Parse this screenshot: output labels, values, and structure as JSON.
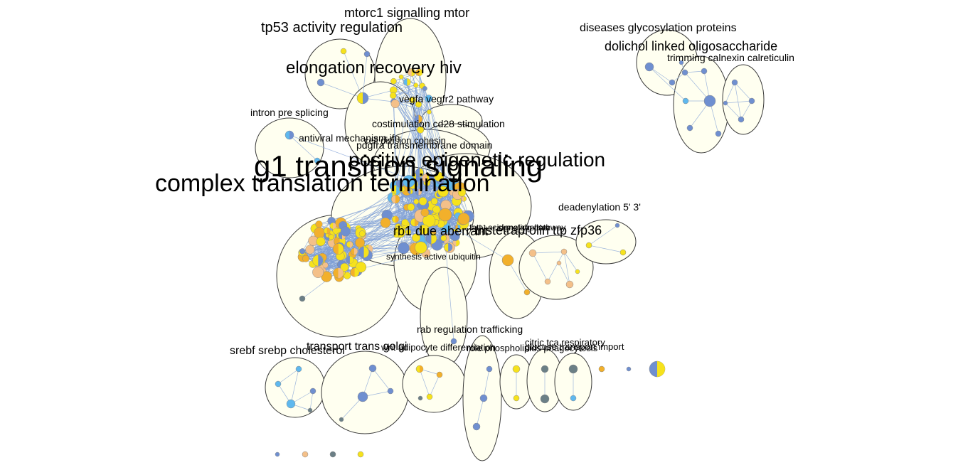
{
  "labels": {
    "g1_transition": "g1 transition signaling",
    "complex_translation": "complex translation termination",
    "positive_epigenetic": "positive epigenetic regulation",
    "elongation_recovery": "elongation recovery hiv",
    "tp53_activity": "tp53 activity regulation",
    "mtorc1": "mtorc1 signalling mtor",
    "rb1_due": "rb1 due aberrant",
    "tristetraprolin": "tristetraprolin ttp zfp36",
    "dolichol": "dolichol linked oligosaccharide",
    "diseases_glycosylation": "diseases glycosylation proteins",
    "trimming_calnexin": "trimming calnexin calreticulin",
    "vegfa": "vegfa vegfr2 pathway",
    "intron": "intron pre splicing",
    "costimulation": "costimulation cd28 stimulation",
    "antiviral": "antiviral mechanism ifn",
    "cell_division": "cell division cohesin",
    "pdgfra": "pdgfra transmembrane domain",
    "deadenylation": "deadenylation 5' 3'",
    "fatty_acid": "fatty acid metabolism",
    "signaling_pathway": "signaling pathway",
    "synthesis_ubiquitin": "synthesis active ubiquitin",
    "rab_regulation": "rab regulation trafficking",
    "srebf": "srebf srebp cholesterol",
    "transport_golgi": "transport trans golgi",
    "wnt_adipocyte": "wnt adipocyte differentiation",
    "role_phospholipids": "role phospholipids phagocytosis",
    "citric_tca": "citric tca respiratory",
    "glucose_transport": "glucose transport import"
  },
  "colors": {
    "yellow": "#f6e21c",
    "blue": "#6f8fd0",
    "light_blue": "#5fb8ee",
    "orange": "#f2b02b",
    "peach": "#f4c089",
    "slate": "#6b7f86",
    "edge": "#7f9fd6",
    "cluster_fill": "#fffff0"
  }
}
